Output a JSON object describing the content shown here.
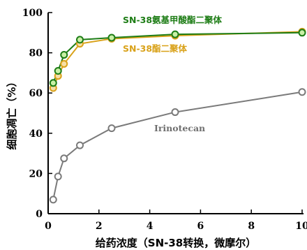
{
  "chart_data": {
    "type": "line",
    "title": "",
    "xlabel": "给药浓度（SN-38转换，微摩尔）",
    "ylabel": "细胞凋亡（%）",
    "xlim": [
      0,
      10
    ],
    "ylim": [
      0,
      100
    ],
    "xticks": [
      0,
      2,
      4,
      6,
      8,
      10
    ],
    "yticks": [
      0,
      20,
      40,
      60,
      80,
      100
    ],
    "grid": false,
    "series": [
      {
        "name": "SN-38氨基甲酸酯二聚体",
        "color": "#1e7d16",
        "marker_fill": "#c9f0a6",
        "x": [
          0.2,
          0.39,
          0.625,
          1.25,
          2.5,
          5,
          10
        ],
        "y": [
          65,
          71,
          79,
          86.5,
          87.5,
          89.2,
          90
        ]
      },
      {
        "name": "SN-38酯二聚体",
        "color": "#d9a21a",
        "marker_fill": "#f7dfa6",
        "x": [
          0.2,
          0.39,
          0.625,
          1.25,
          2.5,
          5,
          10
        ],
        "y": [
          62.5,
          68.5,
          74.5,
          84.5,
          87,
          88.5,
          90.5
        ]
      },
      {
        "name": "Irinotecan",
        "color": "#7a7a7a",
        "marker_fill": "#ffffff",
        "x": [
          0.2,
          0.39,
          0.625,
          1.25,
          2.5,
          5,
          10
        ],
        "y": [
          7,
          18.5,
          27.5,
          34,
          42.5,
          50.5,
          60.5
        ]
      }
    ]
  }
}
